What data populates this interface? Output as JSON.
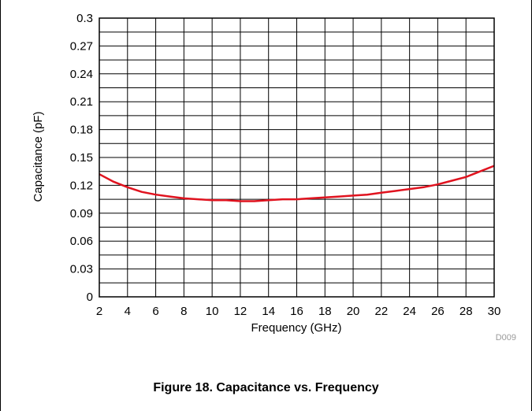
{
  "caption": "Figure 18. Capacitance vs. Frequency",
  "chart_data": {
    "type": "line",
    "title": "",
    "xlabel": "Frequency (GHz)",
    "ylabel": "Capacitance (pF)",
    "xlim": [
      2,
      30
    ],
    "ylim": [
      0,
      0.3
    ],
    "x_ticks": [
      "2",
      "4",
      "6",
      "8",
      "10",
      "12",
      "14",
      "16",
      "18",
      "20",
      "22",
      "24",
      "26",
      "28",
      "30"
    ],
    "y_ticks": [
      "0",
      "0.03",
      "0.06",
      "0.09",
      "0.12",
      "0.15",
      "0.18",
      "0.21",
      "0.24",
      "0.27",
      "0.3"
    ],
    "grid": true,
    "minor_grid": true,
    "annotation": "D009",
    "line_color": "#e0131f",
    "series": [
      {
        "x": [
          2,
          3,
          4,
          5,
          6,
          7,
          8,
          9,
          10,
          11,
          12,
          13,
          14,
          15,
          16,
          17,
          18,
          19,
          20,
          21,
          22,
          23,
          24,
          25,
          26,
          27,
          28,
          29,
          30
        ],
        "values": [
          0.132,
          0.124,
          0.118,
          0.113,
          0.11,
          0.108,
          0.106,
          0.105,
          0.104,
          0.104,
          0.103,
          0.103,
          0.104,
          0.105,
          0.105,
          0.106,
          0.107,
          0.108,
          0.109,
          0.11,
          0.112,
          0.114,
          0.116,
          0.118,
          0.121,
          0.125,
          0.129,
          0.135,
          0.141
        ]
      }
    ]
  }
}
